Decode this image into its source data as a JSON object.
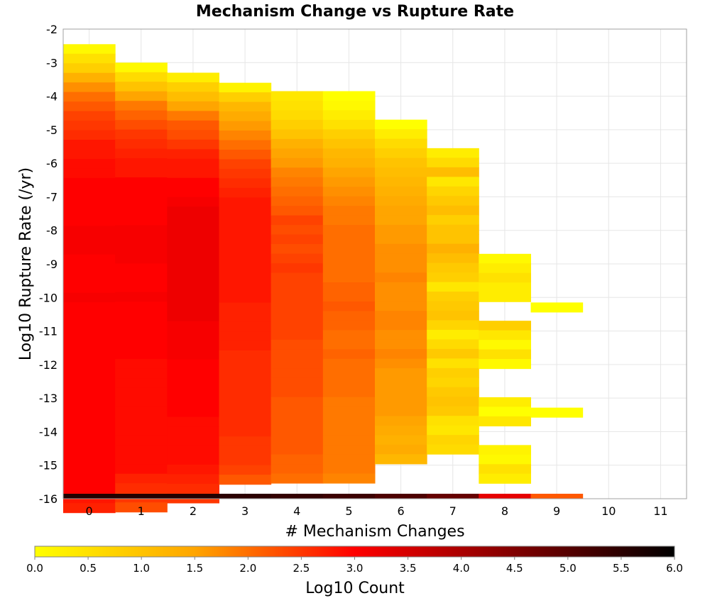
{
  "chart_data": {
    "type": "heatmap",
    "title": "Mechanism Change vs Rupture Rate",
    "xlabel": "# Mechanism Changes",
    "ylabel": "Log10 Rupture Rate (/yr)",
    "x_ticks": [
      "0",
      "1",
      "2",
      "3",
      "4",
      "5",
      "6",
      "7",
      "8",
      "9",
      "10",
      "11"
    ],
    "y_ticks": [
      "-2",
      "-3",
      "-4",
      "-5",
      "-6",
      "-7",
      "-8",
      "-9",
      "-10",
      "-11",
      "-12",
      "-13",
      "-14",
      "-15",
      "-16"
    ],
    "xlim": [
      -0.5,
      11.5
    ],
    "ylim": [
      -16,
      -2
    ],
    "bin_height": 0.285,
    "grid": true,
    "colorbar": {
      "label": "Log10 Count",
      "range": [
        0.0,
        6.0
      ],
      "ticks": [
        "0.0",
        "0.5",
        "1.0",
        "1.5",
        "2.0",
        "2.5",
        "3.0",
        "3.5",
        "4.0",
        "4.5",
        "5.0",
        "5.5",
        "6.0"
      ],
      "colors": [
        "#ffff00",
        "#ffa500",
        "#ff0000",
        "#800000",
        "#000000"
      ],
      "placement": "bottom"
    },
    "bottom_row": {
      "y": -16,
      "values": [
        5.6,
        5.6,
        5.6,
        5.5,
        5.4,
        5.3,
        5.1,
        4.8,
        3.3,
        2.2
      ]
    },
    "columns": [
      {
        "x": 0,
        "y_top": -2.45,
        "values": [
          0.1,
          0.5,
          0.8,
          1.3,
          1.7,
          2.0,
          2.2,
          2.4,
          2.5,
          2.6,
          2.8,
          2.8,
          2.9,
          2.9,
          3.0,
          3.0,
          3.0,
          3.0,
          3.0,
          3.1,
          3.1,
          3.1,
          3.0,
          3.0,
          3.0,
          3.0,
          3.1,
          3.0,
          3.0,
          3.0,
          3.0,
          3.0,
          3.0,
          3.0,
          3.0,
          3.0,
          3.0,
          3.0,
          3.0,
          3.0,
          3.0,
          3.0,
          3.0,
          3.0,
          3.0,
          3.0,
          3.0,
          2.8,
          2.7
        ]
      },
      {
        "x": 1,
        "y_top": -3.0,
        "values": [
          0.1,
          0.6,
          1.0,
          1.5,
          1.9,
          2.1,
          2.3,
          2.5,
          2.6,
          2.7,
          2.8,
          2.8,
          3.0,
          3.0,
          3.0,
          3.0,
          3.0,
          3.1,
          3.1,
          3.1,
          3.1,
          3.0,
          3.0,
          3.0,
          3.1,
          3.0,
          3.0,
          3.0,
          3.0,
          3.0,
          3.0,
          2.9,
          2.9,
          2.9,
          2.9,
          2.9,
          2.9,
          2.9,
          2.9,
          2.9,
          2.9,
          2.9,
          2.9,
          2.7,
          2.6,
          2.5,
          2.3
        ]
      },
      {
        "x": 2,
        "y_top": -3.3,
        "values": [
          0.3,
          0.8,
          1.1,
          1.5,
          1.9,
          2.2,
          2.3,
          2.5,
          2.7,
          2.8,
          2.8,
          3.0,
          3.0,
          3.1,
          3.2,
          3.2,
          3.2,
          3.2,
          3.2,
          3.2,
          3.2,
          3.2,
          3.2,
          3.2,
          3.2,
          3.2,
          3.1,
          3.1,
          3.1,
          3.1,
          3.0,
          3.0,
          3.0,
          3.0,
          3.0,
          3.0,
          2.9,
          2.9,
          2.9,
          2.9,
          2.9,
          2.8,
          2.7,
          2.6,
          2.5
        ]
      },
      {
        "x": 3,
        "y_top": -3.6,
        "values": [
          0.2,
          0.8,
          1.2,
          1.4,
          1.6,
          1.8,
          2.0,
          2.2,
          2.4,
          2.5,
          2.6,
          2.7,
          2.8,
          2.8,
          2.8,
          2.8,
          2.8,
          2.8,
          2.8,
          2.8,
          2.8,
          2.8,
          2.8,
          2.7,
          2.7,
          2.7,
          2.7,
          2.7,
          2.6,
          2.6,
          2.6,
          2.6,
          2.6,
          2.6,
          2.6,
          2.6,
          2.6,
          2.5,
          2.5,
          2.5,
          2.4,
          2.2
        ]
      },
      {
        "x": 4,
        "y_top": -3.85,
        "values": [
          0.4,
          0.5,
          0.6,
          0.8,
          1.0,
          1.3,
          1.5,
          1.6,
          1.8,
          1.9,
          2.0,
          2.1,
          2.2,
          2.4,
          2.3,
          2.4,
          2.3,
          2.4,
          2.5,
          2.4,
          2.4,
          2.4,
          2.4,
          2.4,
          2.4,
          2.4,
          2.3,
          2.3,
          2.3,
          2.3,
          2.3,
          2.3,
          2.2,
          2.2,
          2.2,
          2.2,
          2.2,
          2.2,
          2.1,
          2.1,
          2.0
        ]
      },
      {
        "x": 5,
        "y_top": -3.85,
        "values": [
          0.0,
          0.1,
          0.3,
          0.5,
          0.8,
          1.0,
          1.2,
          1.3,
          1.5,
          1.6,
          1.7,
          1.8,
          1.9,
          1.9,
          2.0,
          2.0,
          2.0,
          2.0,
          2.0,
          2.0,
          2.1,
          2.1,
          2.2,
          2.1,
          2.1,
          2.0,
          2.0,
          2.1,
          2.0,
          2.0,
          2.0,
          2.0,
          1.9,
          1.9,
          1.9,
          1.9,
          1.9,
          1.9,
          1.9,
          1.9,
          1.8
        ]
      },
      {
        "x": 6,
        "y_top": -4.7,
        "values": [
          0.0,
          0.3,
          0.6,
          0.8,
          1.0,
          1.1,
          1.2,
          1.3,
          1.4,
          1.5,
          1.5,
          1.6,
          1.6,
          1.7,
          1.7,
          1.7,
          1.8,
          1.7,
          1.7,
          1.7,
          1.8,
          1.8,
          1.7,
          1.7,
          1.8,
          1.7,
          1.6,
          1.6,
          1.6,
          1.6,
          1.6,
          1.5,
          1.4,
          1.3,
          1.4,
          1.2
        ]
      },
      {
        "x": 7,
        "y_top": -5.55,
        "values": [
          0.3,
          0.6,
          1.1,
          0.4,
          0.7,
          0.9,
          1.1,
          0.8,
          1.0,
          1.0,
          1.3,
          1.1,
          0.9,
          0.8,
          0.4,
          0.8,
          0.9,
          1.0,
          0.7,
          0.3,
          0.6,
          0.9,
          0.5,
          0.8,
          0.7,
          0.9,
          1.0,
          0.9,
          0.5,
          0.4,
          0.7,
          0.6
        ]
      },
      {
        "x": 8,
        "y_top": -8.7,
        "values": [
          0.1,
          0.3,
          0.5,
          0.3,
          0.3,
          null,
          null,
          0.8,
          0.4,
          0.1,
          0.5,
          0.1,
          null,
          null,
          null,
          0.3,
          0.0,
          0.4,
          null,
          null,
          0.2,
          0.1,
          0.5,
          0.3
        ]
      },
      {
        "x": 9,
        "y_top": -10.15,
        "values": [
          0.0,
          null,
          null,
          null,
          null,
          null,
          null,
          null,
          null,
          null,
          null,
          0.0
        ]
      }
    ]
  }
}
